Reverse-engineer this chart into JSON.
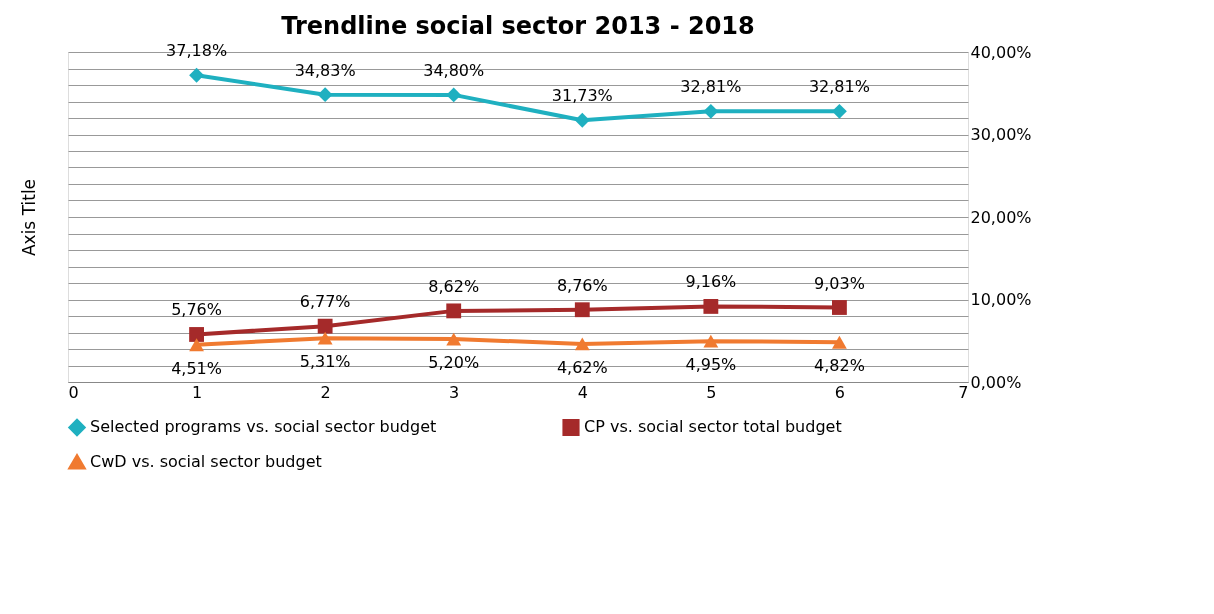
{
  "chart_data": {
    "type": "line",
    "title": "Trendline social sector 2013 - 2018",
    "ylabel": "Axis Title",
    "x": [
      1,
      2,
      3,
      4,
      5,
      6
    ],
    "xlim": [
      0,
      7
    ],
    "xticks": [
      0,
      1,
      2,
      3,
      4,
      5,
      6,
      7
    ],
    "ylim": [
      0,
      40
    ],
    "yticks": [
      {
        "value": 0,
        "label": "0,00%"
      },
      {
        "value": 2,
        "label": null
      },
      {
        "value": 4,
        "label": null
      },
      {
        "value": 6,
        "label": null
      },
      {
        "value": 8,
        "label": null
      },
      {
        "value": 10,
        "label": "10,00%"
      },
      {
        "value": 12,
        "label": null
      },
      {
        "value": 14,
        "label": null
      },
      {
        "value": 16,
        "label": null
      },
      {
        "value": 18,
        "label": null
      },
      {
        "value": 20,
        "label": "20,00%"
      },
      {
        "value": 22,
        "label": null
      },
      {
        "value": 24,
        "label": null
      },
      {
        "value": 26,
        "label": null
      },
      {
        "value": 28,
        "label": null
      },
      {
        "value": 30,
        "label": "30,00%"
      },
      {
        "value": 32,
        "label": null
      },
      {
        "value": 34,
        "label": null
      },
      {
        "value": 36,
        "label": null
      },
      {
        "value": 38,
        "label": null
      },
      {
        "value": 40,
        "label": "40,00%"
      }
    ],
    "grid": "y",
    "legend": "bottom",
    "line_style": "solid",
    "series": [
      {
        "name": "Selected programs vs. social sector budget",
        "color": "#1fb0c0",
        "marker": "diamond",
        "values": [
          37.18,
          34.83,
          34.8,
          31.73,
          32.81,
          32.81
        ],
        "value_labels": [
          "37,18%",
          "34,83%",
          "34,80%",
          "31,73%",
          "32,81%",
          "32,81%"
        ]
      },
      {
        "name": "CP vs. social sector total budget",
        "color": "#a52a2a",
        "marker": "square",
        "values": [
          5.76,
          6.77,
          8.62,
          8.76,
          9.16,
          9.03
        ],
        "value_labels": [
          "5,76%",
          "6,77%",
          "8,62%",
          "8,76%",
          "9,16%",
          "9,03%"
        ]
      },
      {
        "name": "CwD vs. social sector budget",
        "color": "#f07a30",
        "marker": "triangle",
        "values": [
          4.51,
          5.31,
          5.2,
          4.62,
          4.95,
          4.82
        ],
        "value_labels": [
          "4,51%",
          "5,31%",
          "5,20%",
          "4,62%",
          "4,95%",
          "4,82%"
        ]
      }
    ]
  }
}
